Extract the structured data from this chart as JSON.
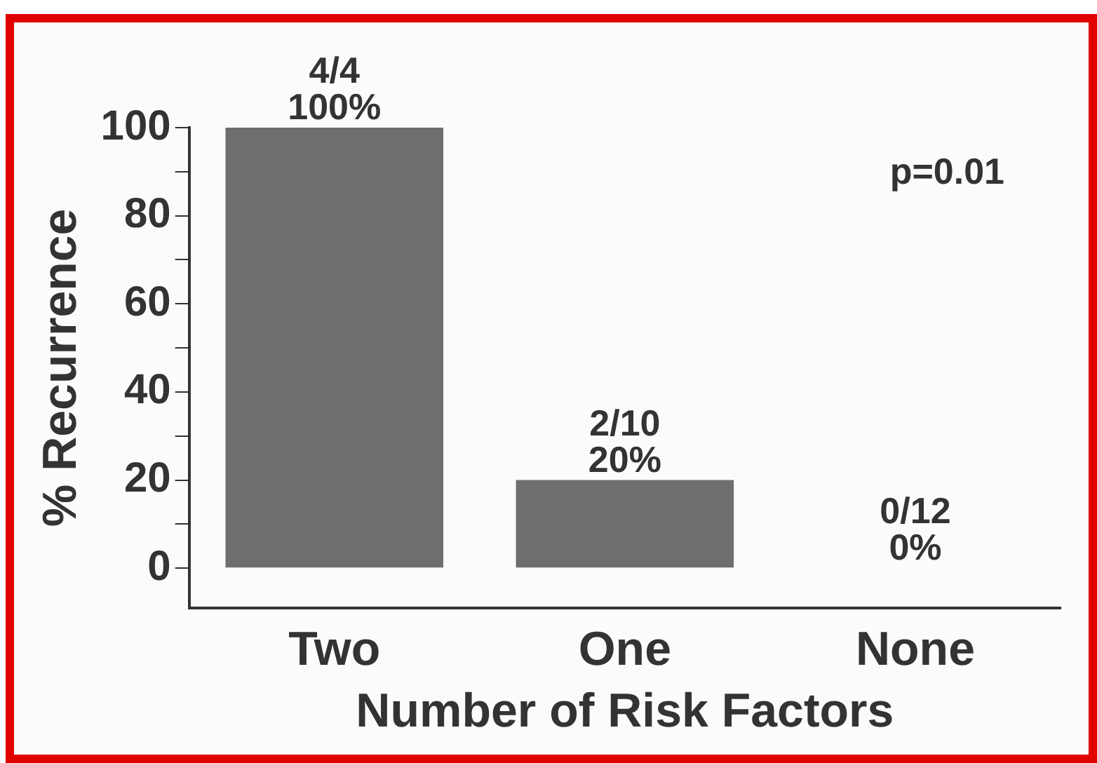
{
  "chart_data": {
    "type": "bar",
    "xlabel": "Number of Risk Factors",
    "ylabel": "% Recurrence",
    "categories": [
      "Two",
      "One",
      "None"
    ],
    "values": [
      100,
      20,
      0
    ],
    "value_labels": [
      "4/4\n100%",
      "2/10\n20%",
      "0/12\n0%"
    ],
    "color": "#6e6e6e",
    "ylim": [
      -9,
      100
    ],
    "yticks": [
      0,
      {
        "value": 10,
        "label": null
      },
      20,
      {
        "value": 30,
        "label": null
      },
      40,
      {
        "value": 50,
        "label": null
      },
      60,
      {
        "value": 70,
        "label": null
      },
      80,
      {
        "value": 90,
        "label": null
      },
      100
    ],
    "grid": false,
    "legend": false,
    "annotations": [
      "p=0.01"
    ]
  }
}
